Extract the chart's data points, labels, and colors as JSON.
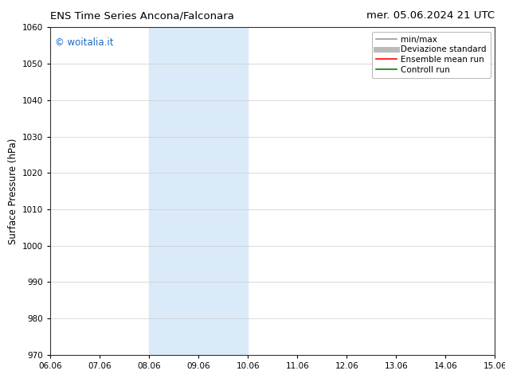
{
  "title_left": "ENS Time Series Ancona/Falconara",
  "title_right": "mer. 05.06.2024 21 UTC",
  "ylabel": "Surface Pressure (hPa)",
  "xlabel": "",
  "watermark": "© woitalia.it",
  "watermark_color": "#1a6bc4",
  "ylim": [
    970,
    1060
  ],
  "yticks": [
    970,
    980,
    990,
    1000,
    1010,
    1020,
    1030,
    1040,
    1050,
    1060
  ],
  "xtick_labels": [
    "06.06",
    "07.06",
    "08.06",
    "09.06",
    "10.06",
    "11.06",
    "12.06",
    "13.06",
    "14.06",
    "15.06"
  ],
  "xtick_positions": [
    0,
    1,
    2,
    3,
    4,
    5,
    6,
    7,
    8,
    9
  ],
  "xlim": [
    0,
    9
  ],
  "shaded_bands": [
    {
      "xmin": 2.0,
      "xmax": 4.0,
      "color": "#daeaf8"
    },
    {
      "xmin": 9.0,
      "xmax": 9.0,
      "color": "#daeaf8"
    }
  ],
  "background_color": "#ffffff",
  "legend_entries": [
    {
      "label": "min/max",
      "color": "#999999",
      "lw": 1.2,
      "style": "solid"
    },
    {
      "label": "Deviazione standard",
      "color": "#bbbbbb",
      "lw": 5,
      "style": "solid"
    },
    {
      "label": "Ensemble mean run",
      "color": "#ff0000",
      "lw": 1.2,
      "style": "solid"
    },
    {
      "label": "Controll run",
      "color": "#008000",
      "lw": 1.2,
      "style": "solid"
    }
  ],
  "title_fontsize": 9.5,
  "axis_fontsize": 8.5,
  "tick_fontsize": 7.5,
  "legend_fontsize": 7.5,
  "watermark_fontsize": 8.5
}
